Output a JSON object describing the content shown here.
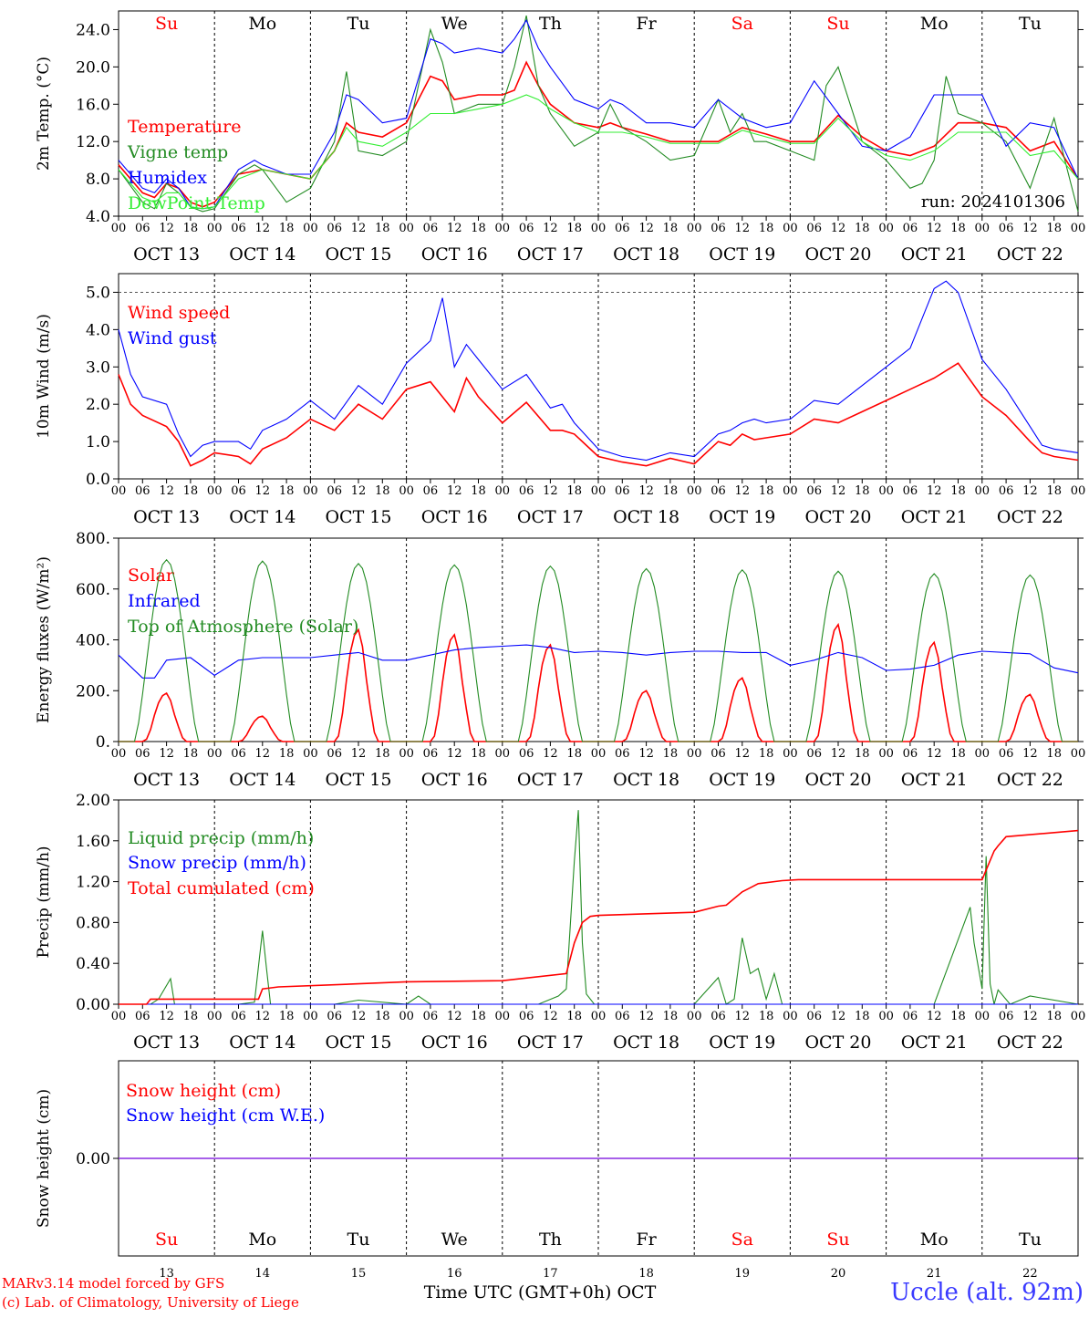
{
  "colors": {
    "red": "#ff0000",
    "green": "#228b22",
    "blue": "#0000ff",
    "lightgreen": "#33ee33",
    "purple": "#8a2be2",
    "axis": "#000000",
    "weekend": "#ff0000",
    "station": "#3a3aff"
  },
  "run_label": "run: 2024101306",
  "xaxis": {
    "hour_ticks": [
      "00",
      "06",
      "12",
      "18"
    ],
    "end_tick": "00",
    "dates": [
      "OCT 13",
      "OCT 14",
      "OCT 15",
      "OCT 16",
      "OCT 17",
      "OCT 18",
      "OCT 19",
      "OCT 20",
      "OCT 21",
      "OCT 22"
    ],
    "weekdays": [
      "Su",
      "Mo",
      "Tu",
      "We",
      "Th",
      "Fr",
      "Sa",
      "Su",
      "Mo",
      "Tu"
    ],
    "weekend_flags": [
      true,
      false,
      false,
      false,
      false,
      false,
      true,
      true,
      false,
      false
    ],
    "day_numbers": [
      "13",
      "14",
      "15",
      "16",
      "17",
      "18",
      "19",
      "20",
      "21",
      "22"
    ],
    "bottom_label": "Time UTC (GMT+0h) OCT"
  },
  "footer": {
    "credit_line1": "MARv3.14 model forced by GFS",
    "credit_line2": "(c) Lab. of Climatology, University of Liege",
    "station": "Uccle (alt. 92m)"
  },
  "chart_data": [
    {
      "type": "line",
      "id": "temperature",
      "ylabel": "2m Temp. (°C)",
      "ylim": [
        4,
        26
      ],
      "ytick_values": [
        4,
        8,
        12,
        16,
        20,
        24
      ],
      "ytick_labels": [
        "4.0",
        "8.0",
        "12.0",
        "16.0",
        "20.0",
        "24.0"
      ],
      "x_unit": "hours since Oct 13 00 UTC",
      "series": [
        {
          "name": "Temperature",
          "color": "red",
          "x": [
            0,
            6,
            9,
            12,
            15,
            18,
            21,
            24,
            30,
            36,
            42,
            48,
            54,
            57,
            60,
            66,
            72,
            78,
            81,
            84,
            90,
            96,
            99,
            102,
            105,
            108,
            114,
            120,
            123,
            126,
            132,
            138,
            144,
            150,
            156,
            162,
            168,
            174,
            180,
            186,
            192,
            198,
            204,
            210,
            216,
            222,
            228,
            234,
            240
          ],
          "y": [
            9.5,
            6.5,
            6,
            7.5,
            7,
            5.5,
            5,
            5.5,
            8.5,
            9,
            8.5,
            8,
            11,
            14,
            13,
            12.5,
            14,
            19,
            18.5,
            16.5,
            17,
            17,
            17.5,
            20.5,
            18,
            16,
            14,
            13.5,
            14,
            13.5,
            12.8,
            12,
            12,
            12,
            13.5,
            12.8,
            12,
            12,
            14.8,
            12.5,
            11,
            10.5,
            11.5,
            14,
            14,
            13.5,
            11,
            12,
            8
          ]
        },
        {
          "name": "Vigne temp",
          "color": "green",
          "x": [
            0,
            6,
            9,
            12,
            15,
            18,
            21,
            24,
            30,
            34,
            36,
            42,
            48,
            54,
            57,
            60,
            66,
            72,
            78,
            81,
            84,
            90,
            96,
            99,
            102,
            105,
            108,
            114,
            120,
            123,
            126,
            132,
            138,
            144,
            150,
            153,
            156,
            159,
            162,
            168,
            174,
            177,
            180,
            186,
            192,
            198,
            201,
            204,
            207,
            210,
            216,
            222,
            228,
            234,
            240
          ],
          "y": [
            9,
            5.5,
            4.8,
            7.5,
            6.5,
            5,
            4.5,
            4.8,
            8.5,
            9.5,
            9,
            5.5,
            7,
            12,
            19.5,
            11,
            10.5,
            12,
            24,
            20.5,
            15,
            16,
            16,
            20,
            25.5,
            18,
            15,
            11.5,
            13,
            16,
            13.5,
            12,
            10,
            10.5,
            16.5,
            13,
            15,
            12,
            12,
            11,
            10,
            18,
            20,
            12,
            10,
            7,
            7.5,
            10,
            19,
            15,
            14,
            12,
            7,
            14.5,
            4.5
          ]
        },
        {
          "name": "Humidex",
          "color": "blue",
          "x": [
            0,
            6,
            9,
            12,
            15,
            18,
            21,
            24,
            30,
            34,
            36,
            42,
            48,
            54,
            57,
            60,
            66,
            72,
            78,
            81,
            84,
            90,
            96,
            99,
            102,
            105,
            108,
            114,
            120,
            123,
            126,
            132,
            138,
            144,
            150,
            156,
            162,
            168,
            174,
            180,
            186,
            192,
            198,
            204,
            210,
            216,
            222,
            228,
            234,
            240
          ],
          "y": [
            10,
            7,
            6.5,
            8,
            7,
            5,
            4.8,
            5,
            9,
            10,
            9.5,
            8.5,
            8.5,
            13,
            17,
            16.5,
            14,
            14.5,
            23,
            22.5,
            21.5,
            22,
            21.5,
            23,
            25,
            22,
            20,
            16.5,
            15.5,
            16.5,
            16,
            14,
            14,
            13.5,
            16.5,
            14.5,
            13.5,
            14,
            18.5,
            15,
            11.5,
            11,
            12.5,
            17,
            17,
            17,
            11.5,
            14,
            13.5,
            8
          ]
        },
        {
          "name": "DewPoint Temp",
          "color": "lightgreen",
          "x": [
            0,
            6,
            9,
            12,
            15,
            18,
            21,
            24,
            30,
            36,
            42,
            48,
            54,
            57,
            60,
            66,
            72,
            78,
            81,
            84,
            90,
            96,
            99,
            102,
            105,
            108,
            114,
            120,
            126,
            132,
            138,
            144,
            150,
            156,
            162,
            168,
            174,
            180,
            186,
            192,
            198,
            204,
            210,
            216,
            222,
            228,
            234,
            240
          ],
          "y": [
            9,
            6,
            5.5,
            6.5,
            6.5,
            5,
            4.8,
            5,
            8,
            9,
            8.5,
            8,
            11,
            13.5,
            12,
            11.5,
            13,
            15,
            15,
            15,
            15.5,
            16,
            16.5,
            17,
            16.5,
            15.5,
            14,
            13,
            13,
            12.5,
            11.8,
            11.8,
            11.8,
            13.2,
            12.5,
            11.8,
            11.8,
            14.5,
            12,
            10.5,
            10,
            11,
            13,
            13,
            13,
            10.5,
            11,
            8
          ]
        }
      ]
    },
    {
      "type": "line",
      "id": "wind",
      "ylabel": "10m Wind (m/s)",
      "ylim": [
        0,
        5.5
      ],
      "ytick_values": [
        0,
        1,
        2,
        3,
        4,
        5
      ],
      "ytick_labels": [
        "0.0",
        "1.0",
        "2.0",
        "3.0",
        "4.0",
        "5.0"
      ],
      "reference_line": 5.0,
      "series": [
        {
          "name": "Wind speed",
          "color": "red",
          "x": [
            0,
            3,
            6,
            12,
            15,
            18,
            21,
            24,
            30,
            33,
            36,
            42,
            48,
            54,
            60,
            66,
            72,
            78,
            81,
            84,
            87,
            90,
            96,
            102,
            108,
            111,
            114,
            120,
            126,
            132,
            138,
            144,
            150,
            153,
            156,
            159,
            162,
            168,
            174,
            180,
            186,
            192,
            198,
            204,
            210,
            216,
            222,
            228,
            231,
            234,
            240
          ],
          "y": [
            2.8,
            2,
            1.7,
            1.4,
            1,
            0.35,
            0.5,
            0.7,
            0.6,
            0.4,
            0.8,
            1.1,
            1.6,
            1.3,
            2,
            1.6,
            2.4,
            2.6,
            2.2,
            1.8,
            2.7,
            2.2,
            1.5,
            2.05,
            1.3,
            1.3,
            1.2,
            0.6,
            0.45,
            0.35,
            0.55,
            0.4,
            1,
            0.9,
            1.2,
            1.05,
            1.1,
            1.2,
            1.6,
            1.5,
            1.8,
            2.1,
            2.4,
            2.7,
            3.1,
            2.2,
            1.7,
            1.0,
            0.7,
            0.6,
            0.5
          ]
        },
        {
          "name": "Wind gust",
          "color": "blue",
          "x": [
            0,
            3,
            6,
            12,
            15,
            18,
            21,
            24,
            30,
            33,
            36,
            42,
            48,
            54,
            60,
            66,
            72,
            78,
            81,
            84,
            87,
            90,
            96,
            102,
            108,
            111,
            114,
            120,
            126,
            132,
            138,
            144,
            150,
            153,
            156,
            159,
            162,
            168,
            174,
            180,
            186,
            192,
            198,
            204,
            207,
            210,
            216,
            222,
            228,
            231,
            234,
            240
          ],
          "y": [
            4,
            2.8,
            2.2,
            2,
            1.2,
            0.6,
            0.9,
            1,
            1,
            0.8,
            1.3,
            1.6,
            2.1,
            1.6,
            2.5,
            2,
            3.1,
            3.7,
            4.85,
            3,
            3.6,
            3.2,
            2.4,
            2.8,
            1.9,
            2,
            1.5,
            0.8,
            0.6,
            0.5,
            0.7,
            0.6,
            1.2,
            1.3,
            1.5,
            1.6,
            1.5,
            1.6,
            2.1,
            2,
            2.5,
            3,
            3.5,
            5.1,
            5.3,
            5,
            3.2,
            2.4,
            1.4,
            0.9,
            0.8,
            0.7
          ]
        }
      ]
    },
    {
      "type": "line",
      "id": "energy",
      "ylabel": "Energy fluxes (W/m²)",
      "ylim": [
        0,
        800
      ],
      "ytick_values": [
        0,
        200,
        400,
        600,
        800
      ],
      "ytick_labels": [
        "0.",
        "200.",
        "400.",
        "600.",
        "800."
      ],
      "series": [
        {
          "name": "Solar",
          "color": "red",
          "day_peaks": [
            190,
            100,
            440,
            420,
            380,
            200,
            250,
            460,
            390,
            185
          ]
        },
        {
          "name": "Infrared",
          "color": "blue",
          "x": [
            0,
            6,
            9,
            12,
            18,
            24,
            30,
            36,
            42,
            48,
            54,
            60,
            66,
            72,
            78,
            84,
            90,
            96,
            102,
            108,
            114,
            120,
            126,
            132,
            138,
            144,
            150,
            156,
            162,
            168,
            174,
            180,
            186,
            192,
            198,
            204,
            210,
            216,
            222,
            228,
            234,
            240
          ],
          "y": [
            340,
            250,
            250,
            320,
            330,
            260,
            320,
            330,
            330,
            330,
            340,
            350,
            320,
            320,
            340,
            360,
            370,
            375,
            380,
            370,
            350,
            355,
            350,
            340,
            350,
            355,
            355,
            350,
            350,
            300,
            320,
            350,
            330,
            280,
            285,
            300,
            340,
            355,
            350,
            345,
            290,
            270
          ]
        },
        {
          "name": "Top of Atmosphere (Solar)",
          "color": "green",
          "day_peaks": [
            715,
            710,
            700,
            695,
            690,
            680,
            675,
            670,
            660,
            655
          ]
        }
      ]
    },
    {
      "type": "line",
      "id": "precip",
      "ylabel": "Precip (mm/h)",
      "ylim": [
        0,
        2
      ],
      "ytick_values": [
        0,
        0.4,
        0.8,
        1.2,
        1.6,
        2.0
      ],
      "ytick_labels": [
        "0.00",
        "0.40",
        "0.80",
        "1.20",
        "1.60",
        "2.00"
      ],
      "series": [
        {
          "name": "Liquid precip (mm/h)",
          "color": "green",
          "x": [
            0,
            8,
            10,
            13,
            14,
            16,
            30,
            34,
            36,
            37,
            38,
            54,
            60,
            72,
            75,
            78,
            102,
            105,
            110,
            112,
            114,
            115,
            116,
            117,
            119,
            130,
            144,
            150,
            152,
            154,
            156,
            158,
            160,
            162,
            164,
            166,
            170,
            204,
            213,
            214,
            216,
            217,
            218,
            219,
            220,
            223,
            228,
            240
          ],
          "y": [
            0,
            0,
            0.05,
            0.25,
            0,
            0,
            0,
            0.02,
            0.72,
            0.35,
            0,
            0,
            0.04,
            0,
            0.08,
            0,
            0,
            0,
            0.08,
            0.15,
            1.4,
            1.9,
            0.6,
            0.1,
            0,
            0,
            0,
            0.26,
            0,
            0.05,
            0.65,
            0.3,
            0.35,
            0.05,
            0.3,
            0,
            0,
            0,
            0.95,
            0.6,
            0.15,
            1.45,
            0.2,
            0,
            0.14,
            0,
            0.08,
            0
          ]
        },
        {
          "name": "Snow precip (mm/h)",
          "color": "blue",
          "x": [
            0,
            240
          ],
          "y": [
            0,
            0
          ]
        },
        {
          "name": "Total cumulated (cm)",
          "color": "red",
          "x": [
            0,
            7,
            8,
            35,
            36,
            40,
            60,
            72,
            96,
            112,
            114,
            116,
            118,
            120,
            144,
            150,
            152,
            156,
            158,
            160,
            166,
            170,
            216,
            219,
            220,
            222,
            240
          ],
          "y": [
            0,
            0,
            0.05,
            0.05,
            0.15,
            0.17,
            0.2,
            0.22,
            0.23,
            0.3,
            0.6,
            0.8,
            0.86,
            0.87,
            0.9,
            0.96,
            0.97,
            1.1,
            1.14,
            1.18,
            1.21,
            1.22,
            1.22,
            1.5,
            1.55,
            1.64,
            1.7
          ]
        }
      ]
    },
    {
      "type": "line",
      "id": "snow",
      "ylabel": "Snow height (cm)",
      "ylim": [
        -1,
        1
      ],
      "ytick_values": [
        0
      ],
      "ytick_labels": [
        "0.00"
      ],
      "series": [
        {
          "name": "Snow height (cm)",
          "color": "red",
          "x": [
            0,
            240
          ],
          "y": [
            0,
            0
          ]
        },
        {
          "name": "Snow height (cm W.E.)",
          "color": "blue",
          "x": [
            0,
            240
          ],
          "y": [
            0,
            0
          ]
        }
      ]
    }
  ]
}
